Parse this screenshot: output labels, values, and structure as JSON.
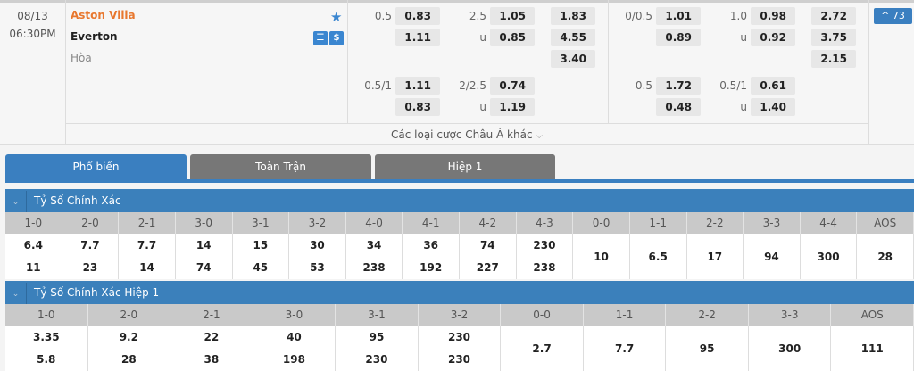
{
  "match": {
    "date": "08/13",
    "time": "06:30PM",
    "home": "Aston Villa",
    "away": "Everton",
    "draw": "Hòa",
    "home_color": "#e8772e"
  },
  "icons": {
    "favorite": "star-icon",
    "stats": "stats-icon",
    "odds": "dollar-icon"
  },
  "odds": {
    "ft_hdp": {
      "line1": "0.5",
      "h1": "0.83",
      "a1": "1.11",
      "line2": "0.5/1",
      "h2": "1.11",
      "a2": "0.83"
    },
    "ft_ou": {
      "line1": "2.5",
      "o1": "1.05",
      "u_label": "u",
      "u1": "0.85",
      "line2": "2/2.5",
      "o2": "0.74",
      "u2": "1.19"
    },
    "ft_1x2": {
      "home": "1.83",
      "away": "4.55",
      "draw": "3.40"
    },
    "h1_hdp": {
      "line1": "0/0.5",
      "h1": "1.01",
      "a1": "0.89",
      "line2": "0.5",
      "h2": "1.72",
      "a2": "0.48"
    },
    "h1_ou": {
      "line1": "1.0",
      "o1": "0.98",
      "u1": "0.92",
      "line2": "0.5/1",
      "o2": "0.61",
      "u2": "1.40"
    },
    "h1_1x2": {
      "home": "2.72",
      "away": "3.75",
      "draw": "2.15"
    }
  },
  "more_bets": "Các loại cược Châu Á khác",
  "expand_button": "^ 73",
  "tabs": [
    "Phổ biến",
    "Toàn Trận",
    "Hiệp 1"
  ],
  "accent": "#3a7fc0",
  "section1": {
    "title": "Tỷ Số Chính Xác",
    "headers": [
      "1-0",
      "2-0",
      "2-1",
      "3-0",
      "3-1",
      "3-2",
      "4-0",
      "4-1",
      "4-2",
      "4-3",
      "0-0",
      "1-1",
      "2-2",
      "3-3",
      "4-4",
      "AOS"
    ],
    "home": [
      "6.4",
      "7.7",
      "7.7",
      "14",
      "15",
      "30",
      "34",
      "36",
      "74",
      "230",
      "10",
      "6.5",
      "17",
      "94",
      "300",
      "28"
    ],
    "away": [
      "11",
      "23",
      "14",
      "74",
      "45",
      "53",
      "238",
      "192",
      "227",
      "238",
      "",
      "",
      "",
      "",
      "",
      ""
    ]
  },
  "section2": {
    "title": "Tỷ Số Chính Xác Hiệp 1",
    "headers": [
      "1-0",
      "2-0",
      "2-1",
      "3-0",
      "3-1",
      "3-2",
      "0-0",
      "1-1",
      "2-2",
      "3-3",
      "AOS"
    ],
    "home": [
      "3.35",
      "9.2",
      "22",
      "40",
      "95",
      "230",
      "2.7",
      "7.7",
      "95",
      "300",
      "111"
    ],
    "away": [
      "5.8",
      "28",
      "38",
      "198",
      "230",
      "230",
      "",
      "",
      "",
      "",
      ""
    ]
  }
}
